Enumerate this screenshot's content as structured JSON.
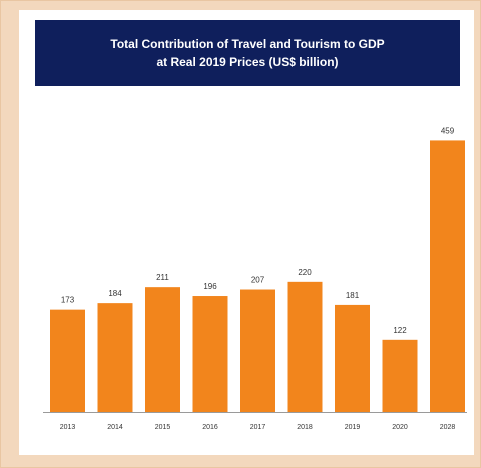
{
  "chart_data": {
    "type": "bar",
    "title": "Total Contribution of Travel and Tourism to GDP",
    "subtitle": "at Real 2019 Prices (US$ billion)",
    "categories": [
      "2013",
      "2014",
      "2015",
      "2016",
      "2017",
      "2018",
      "2019",
      "2020",
      "2028"
    ],
    "values": [
      173,
      184,
      211,
      196,
      207,
      220,
      181,
      122,
      459
    ],
    "data_labels": [
      "173",
      "184",
      "211",
      "196",
      "207",
      "220",
      "181",
      "122",
      "459"
    ],
    "xlabel": "",
    "ylabel": "",
    "ylim": [
      0,
      480
    ],
    "grid": false,
    "legend": "none",
    "bar_color": "#f2851c",
    "title_background": "#0f1f5c"
  }
}
